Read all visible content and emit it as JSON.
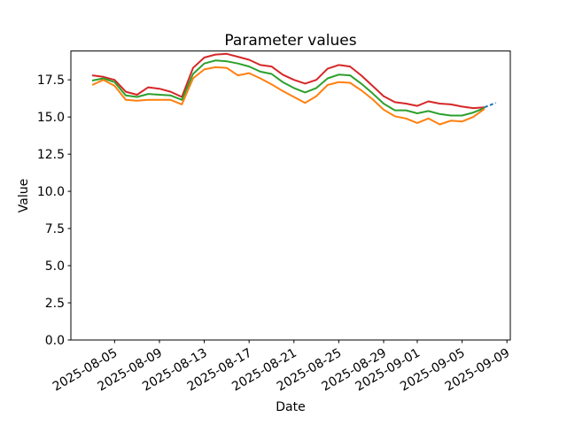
{
  "figure": {
    "title": "Parameter values",
    "xlabel": "Date",
    "ylabel": "Value"
  },
  "chart_data": {
    "type": "line",
    "title": "Parameter values",
    "xlabel": "Date",
    "ylabel": "Value",
    "legend": "none",
    "grid": false,
    "ylim": [
      0,
      19.44
    ],
    "xlim_days": [
      -1.9,
      37.3
    ],
    "y_tick_labels": [
      "0.0",
      "2.5",
      "5.0",
      "7.5",
      "10.0",
      "12.5",
      "15.0",
      "17.5"
    ],
    "y_tick_values": [
      0,
      2.5,
      5,
      7.5,
      10,
      12.5,
      15,
      17.5
    ],
    "x_tick_labels": [
      "2025-08-05",
      "2025-08-09",
      "2025-08-13",
      "2025-08-17",
      "2025-08-21",
      "2025-08-25",
      "2025-08-29",
      "2025-09-01",
      "2025-09-05",
      "2025-09-09"
    ],
    "x_tick_days": [
      2,
      6,
      10,
      14,
      18,
      22,
      26,
      29,
      33,
      37
    ],
    "dates": [
      "2025-08-03",
      "2025-08-04",
      "2025-08-05",
      "2025-08-06",
      "2025-08-07",
      "2025-08-08",
      "2025-08-09",
      "2025-08-10",
      "2025-08-11",
      "2025-08-12",
      "2025-08-13",
      "2025-08-14",
      "2025-08-15",
      "2025-08-16",
      "2025-08-17",
      "2025-08-18",
      "2025-08-19",
      "2025-08-20",
      "2025-08-21",
      "2025-08-22",
      "2025-08-23",
      "2025-08-24",
      "2025-08-25",
      "2025-08-26",
      "2025-08-27",
      "2025-08-28",
      "2025-08-29",
      "2025-08-30",
      "2025-08-31",
      "2025-09-01",
      "2025-09-02",
      "2025-09-03",
      "2025-09-04",
      "2025-09-05",
      "2025-09-06",
      "2025-09-07"
    ],
    "series": [
      {
        "name": "series-red",
        "color": "#d62728",
        "dashed": false,
        "values": [
          17.8,
          17.7,
          17.5,
          16.7,
          16.5,
          17.0,
          16.9,
          16.7,
          16.35,
          18.3,
          19.0,
          19.2,
          19.25,
          19.05,
          18.85,
          18.5,
          18.4,
          17.85,
          17.5,
          17.25,
          17.5,
          18.25,
          18.5,
          18.4,
          17.8,
          17.1,
          16.4,
          16.0,
          15.9,
          15.75,
          16.05,
          15.9,
          15.85,
          15.7,
          15.6,
          15.65
        ]
      },
      {
        "name": "series-green",
        "color": "#2ca02c",
        "dashed": false,
        "values": [
          17.45,
          17.6,
          17.35,
          16.45,
          16.35,
          16.55,
          16.5,
          16.45,
          16.15,
          17.9,
          18.6,
          18.8,
          18.75,
          18.6,
          18.4,
          18.05,
          17.9,
          17.35,
          16.95,
          16.65,
          16.95,
          17.6,
          17.85,
          17.8,
          17.25,
          16.6,
          15.9,
          15.45,
          15.45,
          15.25,
          15.4,
          15.2,
          15.1,
          15.1,
          15.3,
          15.6
        ]
      },
      {
        "name": "series-orange",
        "color": "#ff7f0e",
        "dashed": false,
        "values": [
          17.15,
          17.5,
          17.1,
          16.15,
          16.1,
          16.15,
          16.15,
          16.15,
          15.85,
          17.6,
          18.2,
          18.35,
          18.3,
          17.8,
          17.95,
          17.6,
          17.2,
          16.75,
          16.35,
          15.95,
          16.4,
          17.15,
          17.35,
          17.3,
          16.8,
          16.2,
          15.5,
          15.05,
          14.9,
          14.6,
          14.9,
          14.5,
          14.75,
          14.7,
          15.0,
          15.55
        ]
      },
      {
        "name": "series-blue-forecast",
        "color": "#1f77b4",
        "dashed": true,
        "x_days": [
          35,
          36
        ],
        "forecast_dates": [
          "2025-09-07",
          "2025-09-08"
        ],
        "values": [
          15.65,
          15.95
        ]
      }
    ]
  }
}
